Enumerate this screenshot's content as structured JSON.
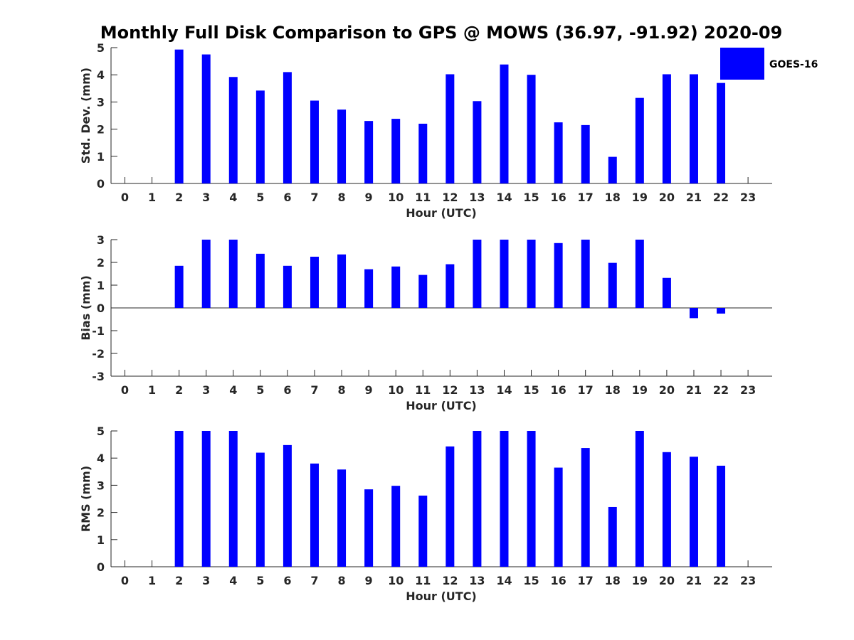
{
  "title": "Monthly Full Disk Comparison to GPS @ MOWS (36.97, -91.92) 2020-09",
  "legend": {
    "label": "GOES-16",
    "color": "#0000ff",
    "position": "top-right"
  },
  "chart_data": [
    {
      "type": "bar",
      "name": "stddev",
      "ylabel": "Std. Dev. (mm)",
      "xlabel": "Hour (UTC)",
      "ylim": [
        0,
        5
      ],
      "yticks": [
        "0",
        "1",
        "2",
        "3",
        "4",
        "5"
      ],
      "xticks": [
        "0",
        "1",
        "2",
        "3",
        "4",
        "5",
        "6",
        "7",
        "8",
        "9",
        "10",
        "11",
        "12",
        "13",
        "14",
        "15",
        "16",
        "17",
        "18",
        "19",
        "20",
        "21",
        "22",
        "23"
      ],
      "series": [
        {
          "name": "GOES-16",
          "color": "#0000ff",
          "values": [
            null,
            null,
            4.93,
            4.75,
            3.92,
            3.42,
            4.1,
            3.05,
            2.72,
            2.3,
            2.38,
            2.2,
            4.02,
            3.03,
            4.38,
            4.0,
            2.25,
            2.15,
            0.98,
            3.15,
            4.02,
            4.02,
            3.7,
            null
          ]
        }
      ]
    },
    {
      "type": "bar",
      "name": "bias",
      "ylabel": "Bias (mm)",
      "xlabel": "Hour (UTC)",
      "ylim": [
        -3,
        3
      ],
      "yticks": [
        "-3",
        "-2",
        "-1",
        "0",
        "1",
        "2",
        "3"
      ],
      "zero_line": true,
      "xticks": [
        "0",
        "1",
        "2",
        "3",
        "4",
        "5",
        "6",
        "7",
        "8",
        "9",
        "10",
        "11",
        "12",
        "13",
        "14",
        "15",
        "16",
        "17",
        "18",
        "19",
        "20",
        "21",
        "22",
        "23"
      ],
      "series": [
        {
          "name": "GOES-16",
          "color": "#0000ff",
          "values": [
            null,
            null,
            1.85,
            3.0,
            3.0,
            2.38,
            1.85,
            2.25,
            2.35,
            1.7,
            1.82,
            1.45,
            1.92,
            3.0,
            3.0,
            3.0,
            2.85,
            3.0,
            1.98,
            3.0,
            1.32,
            -0.45,
            -0.25,
            null
          ]
        }
      ]
    },
    {
      "type": "bar",
      "name": "rms",
      "ylabel": "RMS (mm)",
      "xlabel": "Hour (UTC)",
      "ylim": [
        0,
        5
      ],
      "yticks": [
        "0",
        "1",
        "2",
        "3",
        "4",
        "5"
      ],
      "xticks": [
        "0",
        "1",
        "2",
        "3",
        "4",
        "5",
        "6",
        "7",
        "8",
        "9",
        "10",
        "11",
        "12",
        "13",
        "14",
        "15",
        "16",
        "17",
        "18",
        "19",
        "20",
        "21",
        "22",
        "23"
      ],
      "series": [
        {
          "name": "GOES-16",
          "color": "#0000ff",
          "values": [
            null,
            null,
            5.0,
            5.0,
            5.0,
            4.2,
            4.48,
            3.8,
            3.58,
            2.85,
            2.98,
            2.62,
            4.43,
            5.0,
            5.0,
            5.0,
            3.65,
            4.37,
            2.2,
            5.0,
            4.22,
            4.05,
            3.72,
            null
          ]
        }
      ]
    }
  ]
}
